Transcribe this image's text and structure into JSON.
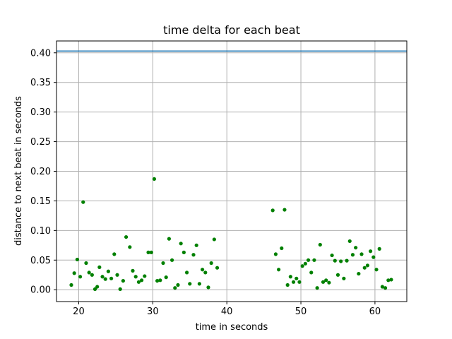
{
  "chart_data": {
    "type": "scatter",
    "title": "time delta for each beat",
    "xlabel": "time in seconds",
    "ylabel": "distance to next beat in seconds",
    "xlim": [
      17,
      64.3
    ],
    "ylim": [
      -0.02,
      0.42
    ],
    "xticks": [
      20,
      30,
      40,
      50,
      60
    ],
    "yticks": [
      0.0,
      0.05,
      0.1,
      0.15,
      0.2,
      0.25,
      0.3,
      0.35,
      0.4
    ],
    "ytick_labels": [
      "0.00",
      "0.05",
      "0.10",
      "0.15",
      "0.20",
      "0.25",
      "0.30",
      "0.35",
      "0.40"
    ],
    "grid": true,
    "hline": {
      "y": 0.403,
      "color": "#1f77b4"
    },
    "marker_color": "#008000",
    "points": [
      [
        19.0,
        0.008
      ],
      [
        19.4,
        0.028
      ],
      [
        19.8,
        0.051
      ],
      [
        20.2,
        0.022
      ],
      [
        20.6,
        0.148
      ],
      [
        21.0,
        0.045
      ],
      [
        21.4,
        0.029
      ],
      [
        21.8,
        0.025
      ],
      [
        22.2,
        0.001
      ],
      [
        22.5,
        0.005
      ],
      [
        22.8,
        0.038
      ],
      [
        23.2,
        0.022
      ],
      [
        23.6,
        0.018
      ],
      [
        24.0,
        0.031
      ],
      [
        24.4,
        0.019
      ],
      [
        24.8,
        0.06
      ],
      [
        25.2,
        0.025
      ],
      [
        25.6,
        0.001
      ],
      [
        26.0,
        0.015
      ],
      [
        26.4,
        0.089
      ],
      [
        26.9,
        0.072
      ],
      [
        27.3,
        0.032
      ],
      [
        27.7,
        0.022
      ],
      [
        28.1,
        0.013
      ],
      [
        28.5,
        0.016
      ],
      [
        28.9,
        0.023
      ],
      [
        29.4,
        0.063
      ],
      [
        29.8,
        0.063
      ],
      [
        30.2,
        0.187
      ],
      [
        30.6,
        0.015
      ],
      [
        31.0,
        0.016
      ],
      [
        31.4,
        0.045
      ],
      [
        31.8,
        0.021
      ],
      [
        32.2,
        0.086
      ],
      [
        32.6,
        0.05
      ],
      [
        33.0,
        0.003
      ],
      [
        33.4,
        0.008
      ],
      [
        33.8,
        0.078
      ],
      [
        34.2,
        0.063
      ],
      [
        34.6,
        0.029
      ],
      [
        35.0,
        0.01
      ],
      [
        35.5,
        0.059
      ],
      [
        35.9,
        0.075
      ],
      [
        36.3,
        0.01
      ],
      [
        36.7,
        0.034
      ],
      [
        37.1,
        0.029
      ],
      [
        37.5,
        0.004
      ],
      [
        37.9,
        0.045
      ],
      [
        38.3,
        0.085
      ],
      [
        38.7,
        0.037
      ],
      [
        46.2,
        0.134
      ],
      [
        46.6,
        0.06
      ],
      [
        47.0,
        0.034
      ],
      [
        47.4,
        0.07
      ],
      [
        47.8,
        0.135
      ],
      [
        48.2,
        0.008
      ],
      [
        48.6,
        0.022
      ],
      [
        49.0,
        0.013
      ],
      [
        49.4,
        0.019
      ],
      [
        49.8,
        0.013
      ],
      [
        50.2,
        0.04
      ],
      [
        50.6,
        0.044
      ],
      [
        51.0,
        0.05
      ],
      [
        51.4,
        0.029
      ],
      [
        51.8,
        0.05
      ],
      [
        52.2,
        0.003
      ],
      [
        52.6,
        0.076
      ],
      [
        53.0,
        0.013
      ],
      [
        53.4,
        0.016
      ],
      [
        53.8,
        0.012
      ],
      [
        54.2,
        0.058
      ],
      [
        54.6,
        0.049
      ],
      [
        55.0,
        0.025
      ],
      [
        55.4,
        0.048
      ],
      [
        55.8,
        0.019
      ],
      [
        56.2,
        0.049
      ],
      [
        56.6,
        0.082
      ],
      [
        57.0,
        0.059
      ],
      [
        57.4,
        0.071
      ],
      [
        57.8,
        0.027
      ],
      [
        58.2,
        0.06
      ],
      [
        58.6,
        0.037
      ],
      [
        59.0,
        0.041
      ],
      [
        59.4,
        0.065
      ],
      [
        59.8,
        0.055
      ],
      [
        60.2,
        0.034
      ],
      [
        60.6,
        0.069
      ],
      [
        61.0,
        0.005
      ],
      [
        61.4,
        0.003
      ],
      [
        61.8,
        0.016
      ],
      [
        62.2,
        0.017
      ]
    ]
  }
}
